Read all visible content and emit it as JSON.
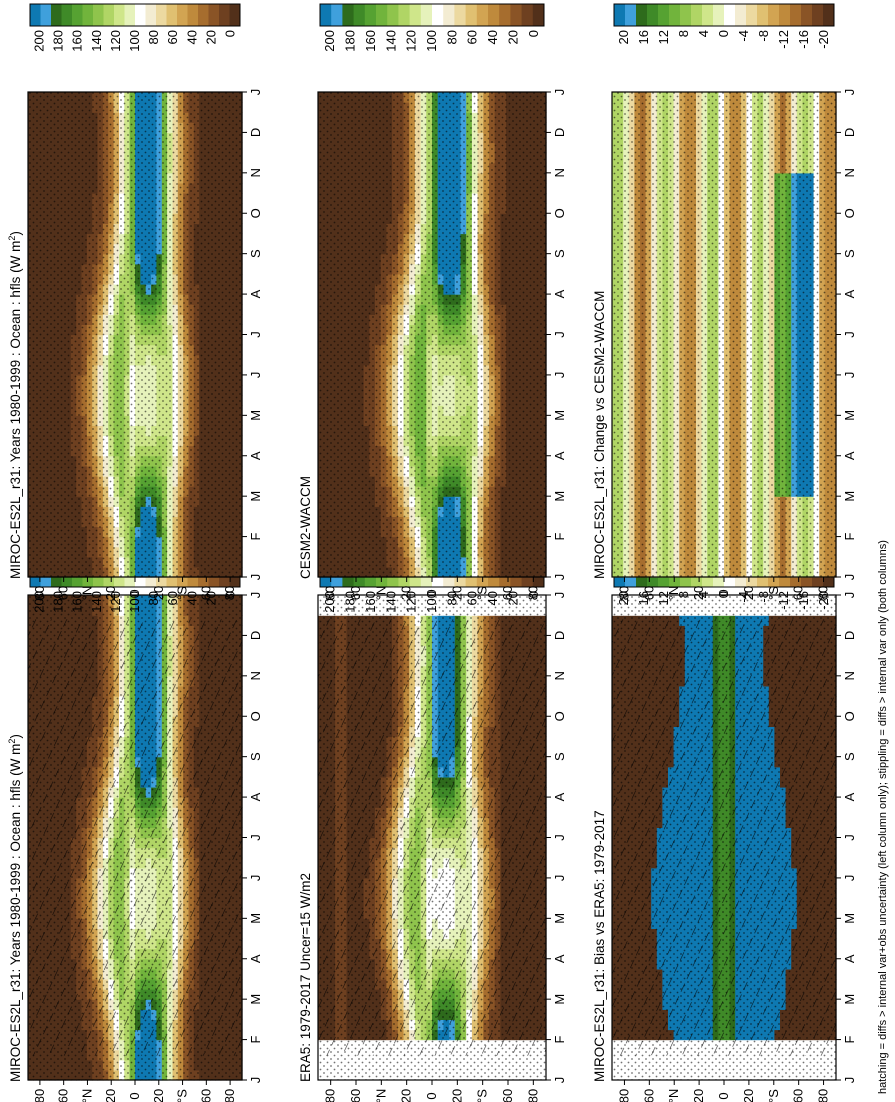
{
  "figure": {
    "footnote": "hatching = diffs > internal var+obs uncertainty (left column only); stippling = diffs > internal var only (both columns)"
  },
  "colors": {
    "field": [
      "#0e79b2",
      "#3fa0dc",
      "#2e6b1c",
      "#3f8a28",
      "#56a232",
      "#71b43c",
      "#8fc44c",
      "#b0d565",
      "#cfe68a",
      "#e6f2bb",
      "#ffffff",
      "#f3ecd2",
      "#ecd9a0",
      "#e0c071",
      "#d2a452",
      "#bf8a3c",
      "#a66d2e",
      "#8a5426",
      "#6e4020",
      "#52301a"
    ],
    "diff": [
      "#0e79b2",
      "#3fa0dc",
      "#2e6b1c",
      "#3f8a28",
      "#56a232",
      "#71b43c",
      "#8fc44c",
      "#b0d565",
      "#cfe68a",
      "#e6f2bb",
      "#ffffff",
      "#f3ecd2",
      "#ecd9a0",
      "#e0c071",
      "#d2a452",
      "#bf8a3c",
      "#a66d2e",
      "#8a5426",
      "#6e4020",
      "#52301a"
    ]
  },
  "chart_data": [
    {
      "type": "heatmap",
      "id": "p1",
      "title_parts": [
        "MIROC-ES2L_r31: Years 1980-1999 : Ocean : hfls (W m",
        "2",
        ")"
      ],
      "x_ticks": [
        "J",
        "F",
        "M",
        "A",
        "M",
        "J",
        "J",
        "A",
        "S",
        "O",
        "N",
        "D",
        "J"
      ],
      "y_ticks": [
        "80",
        "60",
        "°N",
        "20",
        "0",
        "20",
        "°S",
        "60",
        "80"
      ],
      "ylim": [
        -90,
        90
      ],
      "colorbar_labels": [
        "200",
        "180",
        "160",
        "140",
        "120",
        "100",
        "80",
        "60",
        "40",
        "20",
        "0"
      ],
      "overlay": "hatch+stipple",
      "field": "model"
    },
    {
      "type": "heatmap",
      "id": "p2",
      "title_parts": [
        "MIROC-ES2L_r31: Years 1980-1999 : Ocean : hfls (W m",
        "2",
        ")"
      ],
      "x_ticks": [
        "J",
        "F",
        "M",
        "A",
        "M",
        "J",
        "J",
        "A",
        "S",
        "O",
        "N",
        "D",
        "J"
      ],
      "y_ticks": [
        "80",
        "60",
        "°N",
        "20",
        "0",
        "20",
        "°S",
        "60",
        "80"
      ],
      "ylim": [
        -90,
        90
      ],
      "colorbar_labels": [
        "200",
        "180",
        "160",
        "140",
        "120",
        "100",
        "80",
        "60",
        "40",
        "20",
        "0"
      ],
      "overlay": "stipple",
      "field": "model"
    },
    {
      "type": "heatmap",
      "id": "p3",
      "title_parts": [
        "ERA5: 1979-2017 Uncer=15 W/m2"
      ],
      "x_ticks": [
        "J",
        "F",
        "M",
        "A",
        "M",
        "J",
        "J",
        "A",
        "S",
        "O",
        "N",
        "D",
        "J"
      ],
      "y_ticks": [
        "80",
        "60",
        "°N",
        "20",
        "0",
        "20",
        "°S",
        "60",
        "80"
      ],
      "ylim": [
        -90,
        90
      ],
      "colorbar_labels": [
        "200",
        "180",
        "160",
        "140",
        "120",
        "100",
        "80",
        "60",
        "40",
        "20",
        "0"
      ],
      "overlay": "hatch+stipple",
      "field": "obs"
    },
    {
      "type": "heatmap",
      "id": "p4",
      "title_parts": [
        "CESM2-WACCM"
      ],
      "x_ticks": [
        "J",
        "F",
        "M",
        "A",
        "M",
        "J",
        "J",
        "A",
        "S",
        "O",
        "N",
        "D",
        "J"
      ],
      "y_ticks": [
        "80",
        "60",
        "°N",
        "20",
        "0",
        "20",
        "°S",
        "60",
        "80"
      ],
      "ylim": [
        -90,
        90
      ],
      "colorbar_labels": [
        "200",
        "180",
        "160",
        "140",
        "120",
        "100",
        "80",
        "60",
        "40",
        "20",
        "0"
      ],
      "overlay": "stipple",
      "field": "model2"
    },
    {
      "type": "heatmap",
      "id": "p5",
      "title_parts": [
        "MIROC-ES2L_r31: Bias vs ERA5: 1979-2017"
      ],
      "x_ticks": [
        "J",
        "F",
        "M",
        "A",
        "M",
        "J",
        "J",
        "A",
        "S",
        "O",
        "N",
        "D",
        "J"
      ],
      "y_ticks": [
        "80",
        "60",
        "°N",
        "20",
        "0",
        "20",
        "°S",
        "60",
        "80"
      ],
      "ylim": [
        -90,
        90
      ],
      "colorbar_labels": [
        "20",
        "16",
        "12",
        "8",
        "4",
        "0",
        "-4",
        "-8",
        "-12",
        "-16",
        "-20"
      ],
      "overlay": "hatch+stipple",
      "field": "bias"
    },
    {
      "type": "heatmap",
      "id": "p6",
      "title_parts": [
        "MIROC-ES2L_r31: Change vs CESM2-WACCM"
      ],
      "x_ticks": [
        "J",
        "F",
        "M",
        "A",
        "M",
        "J",
        "J",
        "A",
        "S",
        "O",
        "N",
        "D",
        "J"
      ],
      "y_ticks": [
        "80",
        "60",
        "°N",
        "20",
        "0",
        "20",
        "°S",
        "60",
        "80"
      ],
      "ylim": [
        -90,
        90
      ],
      "colorbar_labels": [
        "20",
        "16",
        "12",
        "8",
        "4",
        "0",
        "-4",
        "-8",
        "-12",
        "-16",
        "-20"
      ],
      "overlay": "stipple",
      "field": "change"
    }
  ]
}
